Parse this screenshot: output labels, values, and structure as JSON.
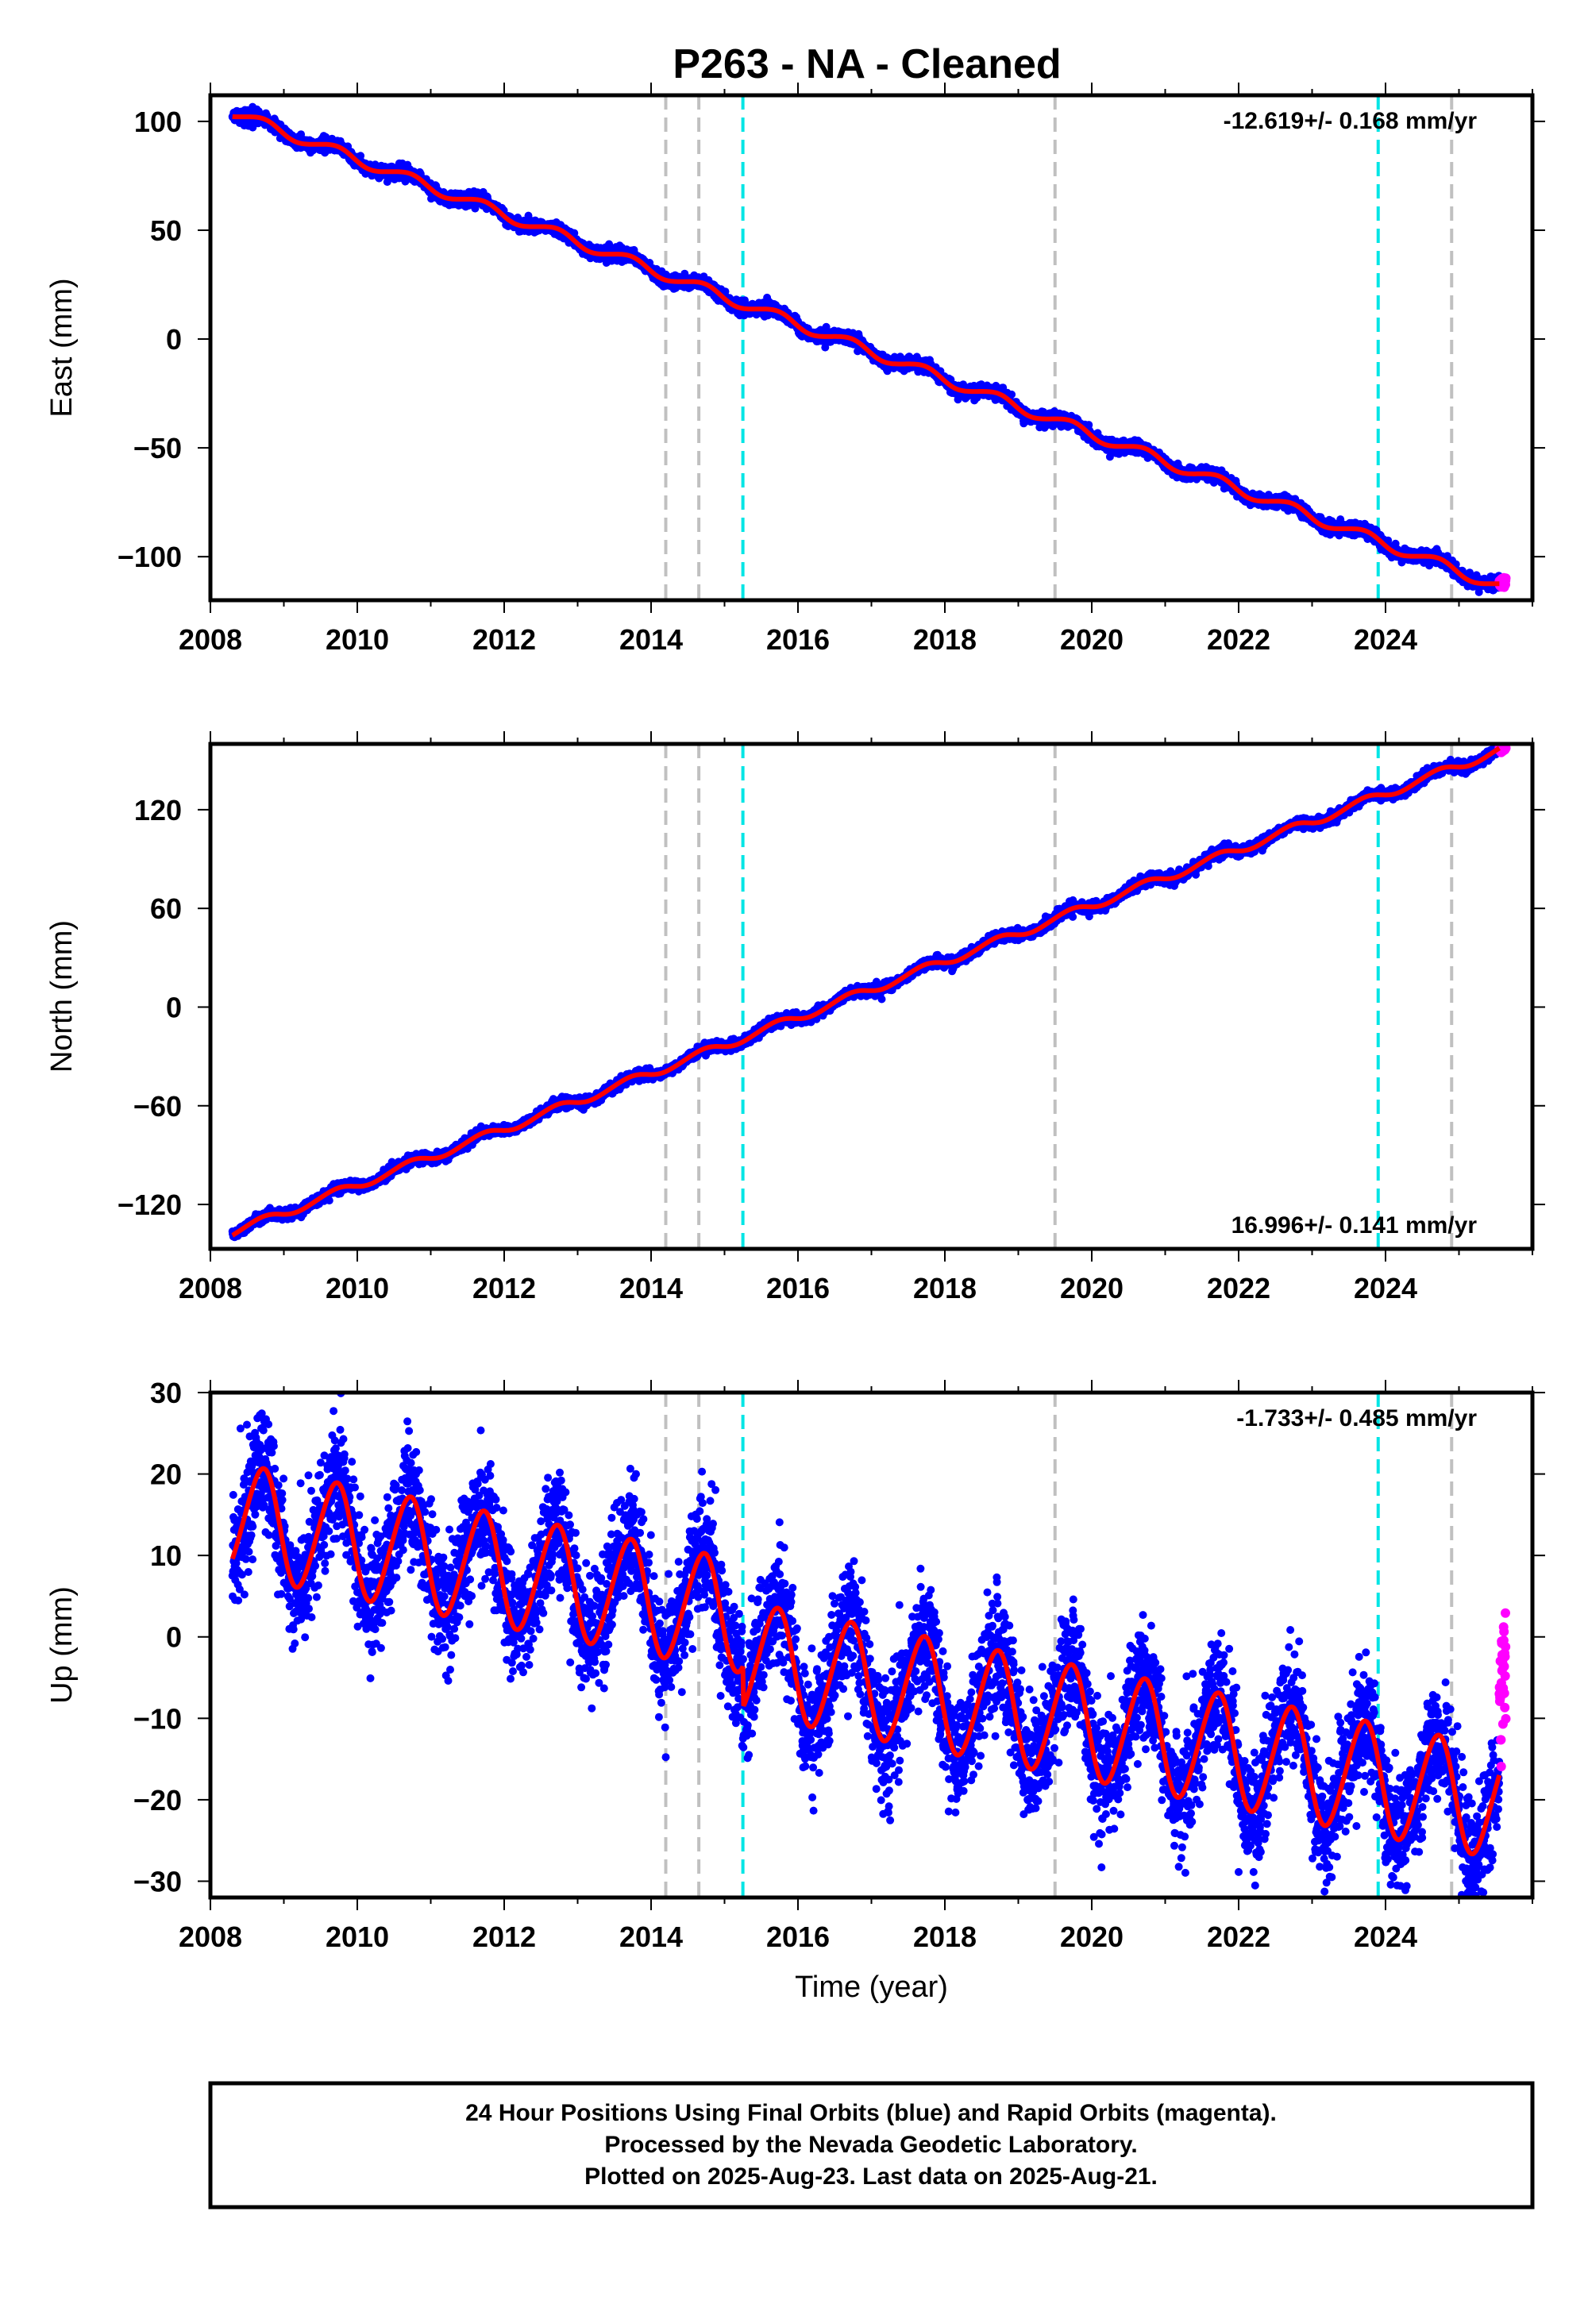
{
  "title": "P263  - NA - Cleaned",
  "colors": {
    "final_orbits": "#0000ff",
    "rapid_orbits": "#ff00ff",
    "model": "#ff0000",
    "event_gray": "#c0c0c0",
    "event_cyan": "#00e5e5"
  },
  "footer": {
    "line1": "24 Hour Positions Using Final Orbits (blue) and Rapid Orbits (magenta).",
    "line2": "Processed by the Nevada Geodetic Laboratory.",
    "line3": "Plotted on 2025-Aug-23. Last data on 2025-Aug-21."
  },
  "chart_data": [
    {
      "type": "scatter",
      "id": "east",
      "ylabel": "East (mm)",
      "xlabel": "",
      "rate_label": "-12.619+/- 0.168 mm/yr",
      "rate_position": "top-right",
      "xlim": [
        2008.0,
        2026.0
      ],
      "ylim": [
        -120,
        112
      ],
      "xticks": [
        2008,
        2010,
        2012,
        2014,
        2016,
        2018,
        2020,
        2022,
        2024
      ],
      "yticks": [
        100,
        50,
        0,
        -50,
        -100
      ],
      "series": [
        {
          "label": "Final Orbits",
          "color": "blue",
          "x_range": [
            2008.3,
            2025.55
          ],
          "model": {
            "start": 104,
            "rate": -12.619,
            "annual_amp": 2.5,
            "noise": 1.4
          }
        },
        {
          "label": "Rapid Orbits",
          "color": "magenta",
          "x_range": [
            2025.55,
            2025.64
          ],
          "model": {
            "start": -112,
            "rate": 0,
            "annual_amp": 0,
            "noise": 1.0
          }
        }
      ],
      "model_line": {
        "color": "red"
      },
      "events_gray": [
        2014.2,
        2014.65,
        2019.5,
        2024.9
      ],
      "events_cyan": [
        2015.25,
        2023.9
      ]
    },
    {
      "type": "scatter",
      "id": "north",
      "ylabel": "North (mm)",
      "xlabel": "",
      "rate_label": "16.996+/- 0.141 mm/yr",
      "rate_position": "bottom-right",
      "xlim": [
        2008.0,
        2026.0
      ],
      "ylim": [
        -147,
        160
      ],
      "xticks": [
        2008,
        2010,
        2012,
        2014,
        2016,
        2018,
        2020,
        2022,
        2024
      ],
      "yticks": [
        120,
        60,
        0,
        -60,
        -120
      ],
      "series": [
        {
          "label": "Final Orbits",
          "color": "blue",
          "x_range": [
            2008.3,
            2025.55
          ],
          "model": {
            "start": -137,
            "rate": 16.996,
            "annual_amp": 2.5,
            "noise": 1.5
          }
        },
        {
          "label": "Rapid Orbits",
          "color": "magenta",
          "x_range": [
            2025.55,
            2025.64
          ],
          "model": {
            "start": 157,
            "rate": 0,
            "annual_amp": 0,
            "noise": 1.0
          }
        }
      ],
      "model_line": {
        "color": "red"
      },
      "events_gray": [
        2014.2,
        2014.65,
        2019.5,
        2024.9
      ],
      "events_cyan": [
        2015.25,
        2023.9
      ]
    },
    {
      "type": "scatter",
      "id": "up",
      "ylabel": "Up (mm)",
      "xlabel": "Time (year)",
      "rate_label": "-1.733+/- 0.485 mm/yr",
      "rate_position": "top-right",
      "xlim": [
        2008.0,
        2026.0
      ],
      "ylim": [
        -32,
        30
      ],
      "xticks": [
        2008,
        2010,
        2012,
        2014,
        2016,
        2018,
        2020,
        2022,
        2024
      ],
      "yticks": [
        30,
        20,
        10,
        0,
        -10,
        -20,
        -30
      ],
      "series": [
        {
          "label": "Final Orbits",
          "color": "blue",
          "x_range": [
            2008.3,
            2025.55
          ],
          "model": {
            "start": 14.5,
            "rate": -1.733,
            "annual_amp": 6.8,
            "noise": 3.6,
            "offset_2015": -5
          }
        },
        {
          "label": "Rapid Orbits",
          "color": "magenta",
          "x_range": [
            2025.55,
            2025.64
          ],
          "model": {
            "start": -5,
            "rate": 0,
            "annual_amp": 0,
            "noise": 4.0
          }
        }
      ],
      "model_line": {
        "color": "red"
      },
      "events_gray": [
        2014.2,
        2014.65,
        2019.5,
        2024.9
      ],
      "events_cyan": [
        2015.25,
        2023.9
      ]
    }
  ]
}
